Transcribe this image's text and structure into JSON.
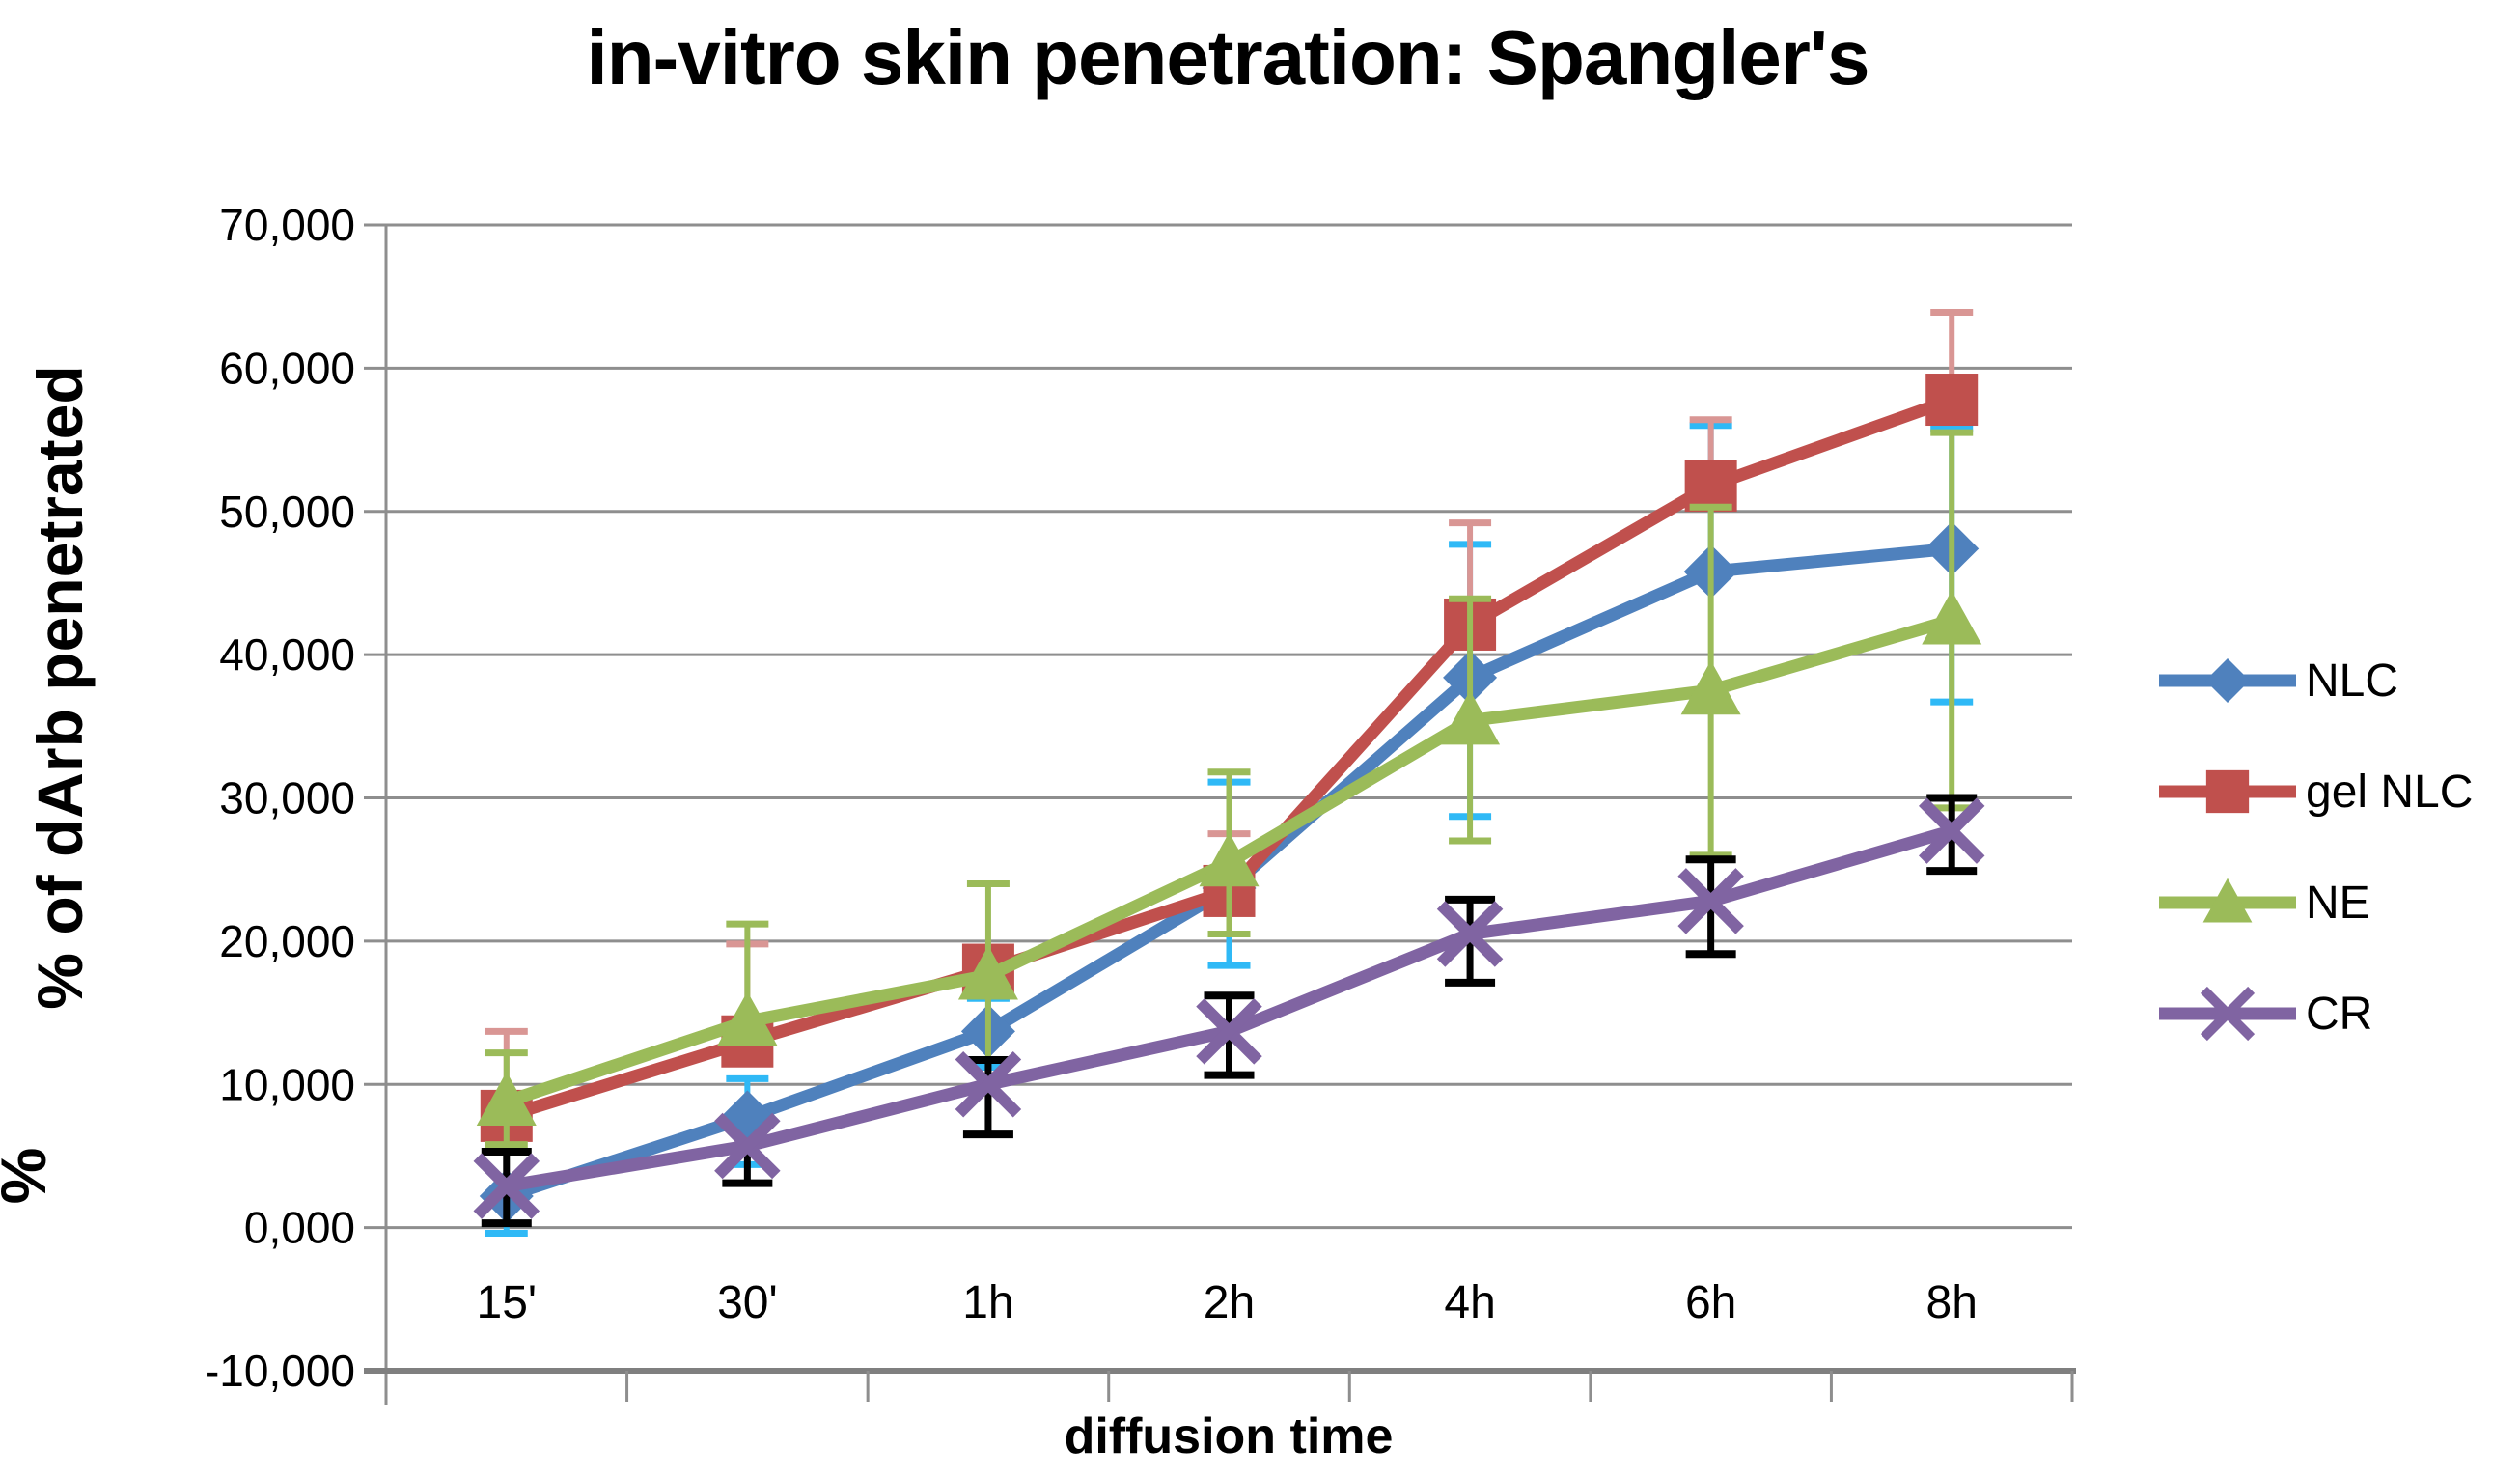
{
  "title": "in-vitro skin penetration: Spangler's",
  "x_axis": {
    "label": "diffusion time",
    "categories": [
      "15'",
      "30'",
      "1h",
      "2h",
      "4h",
      "6h",
      "8h"
    ]
  },
  "y_axis": {
    "title_inner": "% of dArb penetrated",
    "title_outer": "%",
    "tick_labels": [
      "70,000",
      "60,000",
      "50,000",
      "40,000",
      "30,000",
      "20,000",
      "10,000",
      "0,000",
      "-10,000"
    ],
    "tick_values": [
      70000,
      60000,
      50000,
      40000,
      30000,
      20000,
      10000,
      0,
      -10000
    ]
  },
  "legend": {
    "position": "right"
  },
  "colors": {
    "gridline": "#8E8E8E",
    "axis_line": "#7F7F7F",
    "nlc_blue": "#4F81BD",
    "gel_nlc_red": "#C0504D",
    "ne_green": "#9BBB59",
    "cr_purple": "#8064A2",
    "err_blue": "#2FB9F6",
    "err_pink": "#D99694",
    "err_green": "#9BBB59",
    "err_black": "#000000"
  },
  "chart_data": {
    "type": "line",
    "title": "in-vitro skin penetration: Spangler's",
    "xlabel": "diffusion time",
    "ylabel": "% / % of dArb penetrated",
    "categories": [
      "15'",
      "30'",
      "1h",
      "2h",
      "4h",
      "6h",
      "8h"
    ],
    "ylim": [
      -10000,
      70000
    ],
    "grid": true,
    "legend_position": "right",
    "series": [
      {
        "name": "NLC",
        "color": "#4F81BD",
        "marker": "diamond",
        "error_color": "#2FB9F6",
        "values": [
          2200,
          7700,
          13700,
          23700,
          38400,
          45800,
          47400
        ],
        "err_hi": [
          5300,
          10400,
          16000,
          31100,
          47700,
          56000,
          55800
        ],
        "err_lo": [
          -400,
          4400,
          11200,
          18300,
          28700,
          null,
          36700
        ]
      },
      {
        "name": "gel NLC",
        "color": "#C0504D",
        "marker": "square",
        "error_color": "#D99694",
        "values": [
          7800,
          13000,
          18000,
          23500,
          42100,
          51800,
          57800
        ],
        "err_hi": [
          13700,
          19800,
          null,
          27500,
          49200,
          56400,
          63900
        ],
        "err_lo": [
          null,
          null,
          null,
          null,
          null,
          null,
          null
        ]
      },
      {
        "name": "NE",
        "color": "#9BBB59",
        "marker": "triangle",
        "error_color": "#9BBB59",
        "values": [
          8800,
          14400,
          17600,
          25500,
          35400,
          37500,
          42400
        ],
        "err_hi": [
          12200,
          21200,
          24000,
          31800,
          43900,
          50300,
          55500
        ],
        "err_lo": [
          5800,
          null,
          11700,
          20500,
          27000,
          26000,
          29300
        ]
      },
      {
        "name": "CR",
        "color": "#8064A2",
        "marker": "x",
        "error_color": "#000000",
        "values": [
          2900,
          5700,
          10000,
          13700,
          20500,
          22800,
          27700
        ],
        "err_hi": [
          5300,
          null,
          11700,
          16200,
          22900,
          25700,
          30000
        ],
        "err_lo": [
          300,
          3100,
          6500,
          10650,
          17100,
          19100,
          24900
        ]
      }
    ]
  }
}
